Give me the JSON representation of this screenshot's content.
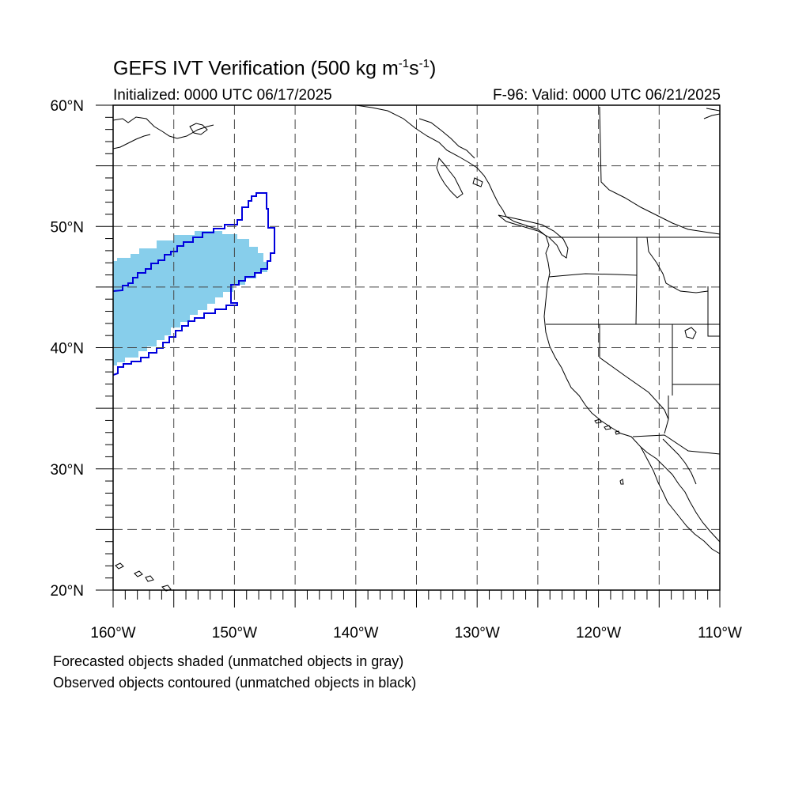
{
  "header": {
    "title_main": "GEFS IVT Verification (500 kg m",
    "title_sup1": "-1",
    "title_mid": "s",
    "title_sup2": "-1",
    "title_end": ")",
    "initialized": "Initialized: 0000 UTC 06/17/2025",
    "valid": "F-96: Valid: 0000 UTC 06/21/2025"
  },
  "axes": {
    "lat_labels": [
      "20°N",
      "30°N",
      "40°N",
      "50°N",
      "60°N"
    ],
    "lon_labels": [
      "160°W",
      "150°W",
      "140°W",
      "130°W",
      "120°W",
      "110°W"
    ],
    "lat_range": [
      20,
      60
    ],
    "lon_range": [
      -160,
      -110
    ],
    "grid_spacing_deg": 5,
    "grid": true
  },
  "legend": {
    "line1": "Forecasted objects shaded (unmatched objects in gray)",
    "line2": "Observed objects contoured (unmatched objects in black)"
  },
  "colors": {
    "forecast_fill": "#87ceeb",
    "observed_contour": "#0000dd",
    "coast": "#000000",
    "grid": "#555555"
  },
  "objects": {
    "forecast_shaded": "matched forecast IVT object",
    "observed_contour": "matched observed IVT object"
  }
}
